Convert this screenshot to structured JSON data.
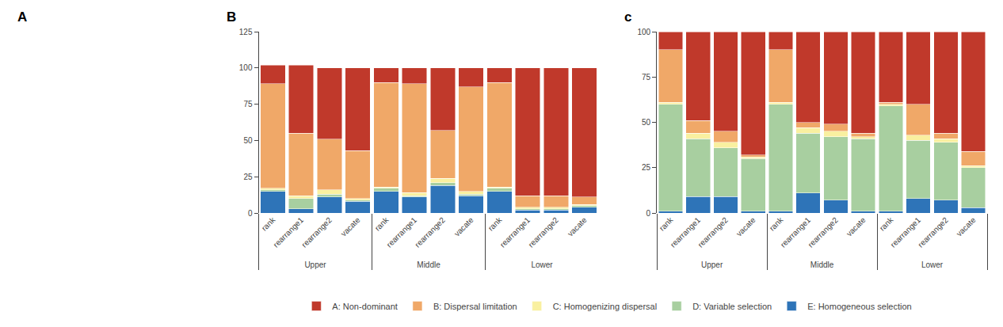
{
  "chart_data": [
    {
      "type": "empty",
      "title": "A"
    },
    {
      "type": "bar",
      "title": "B",
      "stacked": true,
      "grid": false,
      "legend": "bottom",
      "categories": [
        [
          "Upper",
          "rank"
        ],
        [
          "Upper",
          "rearrange1"
        ],
        [
          "Upper",
          "rearrange2"
        ],
        [
          "Upper",
          "vacate"
        ],
        [
          "Middle",
          "rank"
        ],
        [
          "Middle",
          "rearrange1"
        ],
        [
          "Middle",
          "rearrange2"
        ],
        [
          "Middle",
          "vacate"
        ],
        [
          "Lower",
          "rank"
        ],
        [
          "Lower",
          "rearrange1"
        ],
        [
          "Lower",
          "rearrange2"
        ],
        [
          "Lower",
          "vacate"
        ]
      ],
      "series": [
        {
          "name": "E: Homogeneous selection",
          "color": "#2e74b8",
          "values": [
            15,
            3,
            11,
            8,
            15,
            11,
            19,
            12,
            15,
            2,
            2,
            4
          ]
        },
        {
          "name": "D: Variable selection",
          "color": "#a8cfa0",
          "values": [
            1,
            7,
            2,
            1,
            2,
            1,
            2,
            1,
            2,
            1,
            1,
            1
          ]
        },
        {
          "name": "C: Homogenizing dispersal",
          "color": "#f9f0a0",
          "values": [
            1,
            2,
            3,
            1,
            1,
            2,
            3,
            2,
            1,
            1,
            1,
            1
          ]
        },
        {
          "name": "B: Dispersal limitation",
          "color": "#f0a868",
          "values": [
            72,
            43,
            35,
            33,
            72,
            75,
            33,
            72,
            72,
            8,
            8,
            5
          ]
        },
        {
          "name": "A: Non-dominant",
          "color": "#c0392b",
          "values": [
            13,
            47,
            49,
            57,
            10,
            11,
            43,
            13,
            10,
            88,
            88,
            89
          ]
        }
      ],
      "ylim": [
        0,
        125
      ],
      "yticks": [
        0,
        25,
        50,
        75,
        100,
        125
      ]
    },
    {
      "type": "bar",
      "title": "c",
      "stacked": true,
      "grid": false,
      "categories": [
        [
          "Upper",
          "rank"
        ],
        [
          "Upper",
          "rearrange1"
        ],
        [
          "Upper",
          "rearrange2"
        ],
        [
          "Upper",
          "vacate"
        ],
        [
          "Middle",
          "rank"
        ],
        [
          "Middle",
          "rearrange1"
        ],
        [
          "Middle",
          "rearrange2"
        ],
        [
          "Middle",
          "vacate"
        ],
        [
          "Lower",
          "rank"
        ],
        [
          "Lower",
          "rearrange1"
        ],
        [
          "Lower",
          "rearrange2"
        ],
        [
          "Lower",
          "vacate"
        ]
      ],
      "series": [
        {
          "name": "E: Homogeneous selection",
          "color": "#2e74b8",
          "values": [
            1,
            9,
            9,
            1,
            1,
            11,
            7,
            1,
            1,
            8,
            7,
            3
          ]
        },
        {
          "name": "D: Variable selection",
          "color": "#a8cfa0",
          "values": [
            59,
            32,
            27,
            29,
            59,
            33,
            35,
            40,
            58,
            32,
            32,
            22
          ]
        },
        {
          "name": "C: Homogenizing dispersal",
          "color": "#f9f0a0",
          "values": [
            1,
            3,
            3,
            1,
            1,
            3,
            3,
            1,
            1,
            3,
            2,
            1
          ]
        },
        {
          "name": "B: Dispersal limitation",
          "color": "#f0a868",
          "values": [
            29,
            7,
            6,
            1,
            29,
            3,
            4,
            2,
            1,
            17,
            3,
            8
          ]
        },
        {
          "name": "A: Non-dominant",
          "color": "#c0392b",
          "values": [
            10,
            49,
            55,
            68,
            10,
            50,
            51,
            56,
            39,
            40,
            56,
            66
          ]
        }
      ],
      "ylim": [
        0,
        100
      ],
      "yticks": [
        0,
        25,
        50,
        75,
        100
      ]
    }
  ]
}
